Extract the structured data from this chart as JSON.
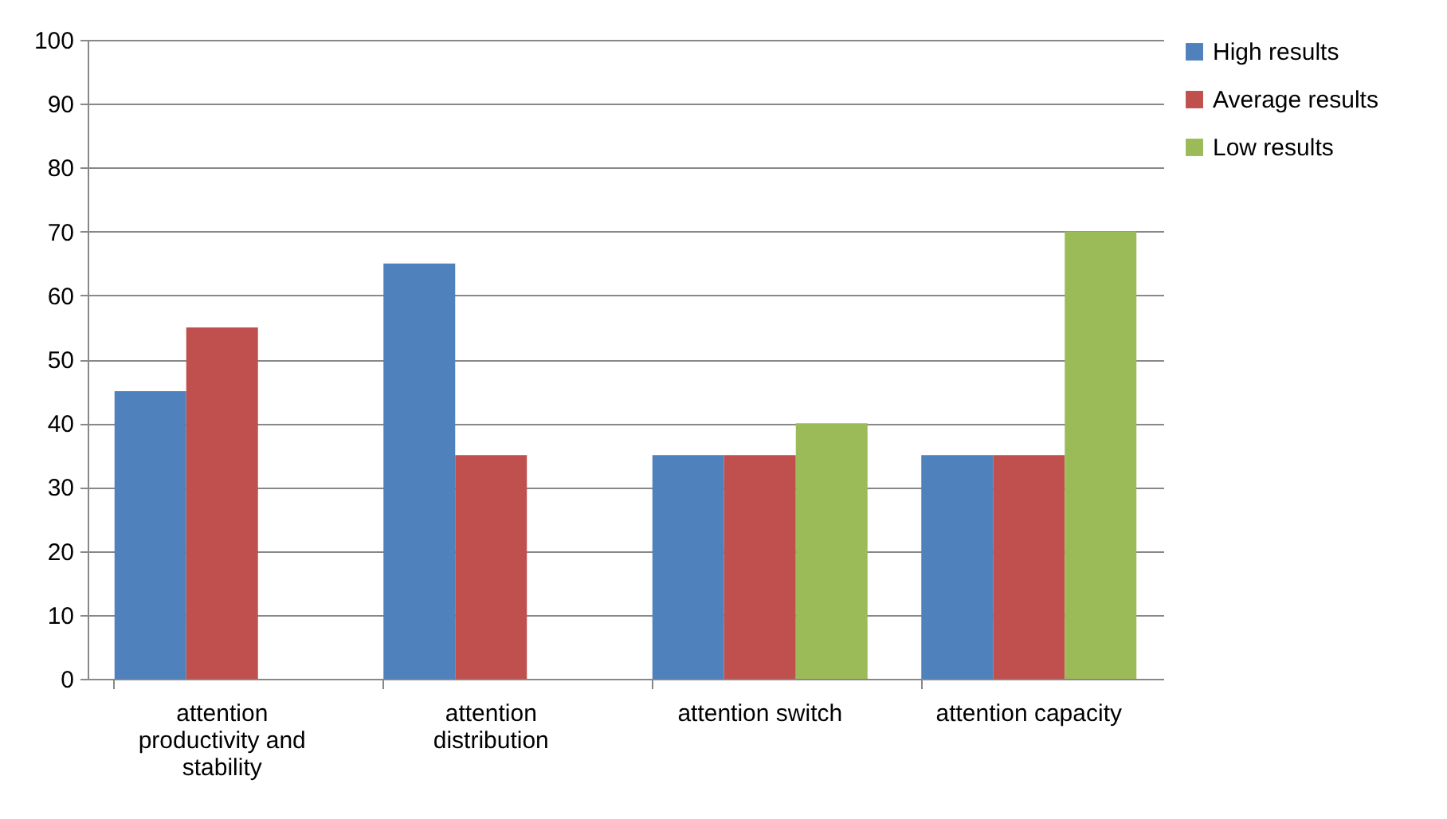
{
  "chart_data": {
    "type": "bar",
    "categories": [
      "attention productivity and stability",
      "attention distribution",
      "attention switch",
      "attention capacity"
    ],
    "series": [
      {
        "name": "High results",
        "color": "#4f81bd",
        "values": [
          45,
          65,
          35,
          35
        ]
      },
      {
        "name": "Average results",
        "color": "#c0504d",
        "values": [
          55,
          35,
          35,
          35
        ]
      },
      {
        "name": "Low results",
        "color": "#9bbb59",
        "values": [
          0,
          0,
          40,
          70
        ]
      }
    ],
    "ylim": [
      0,
      100
    ],
    "yticks": [
      0,
      10,
      20,
      30,
      40,
      50,
      60,
      70,
      80,
      90,
      100
    ],
    "grid": "y",
    "legend": "right"
  }
}
